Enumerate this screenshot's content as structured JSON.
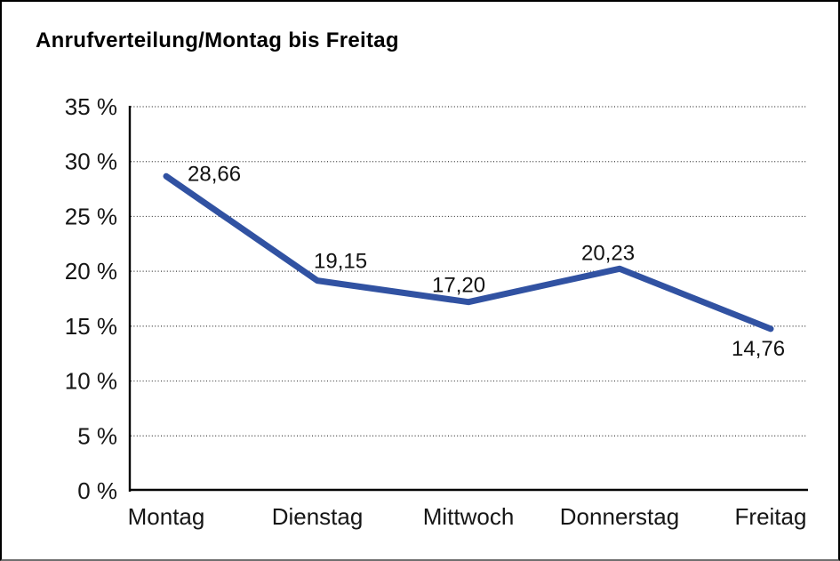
{
  "page": {
    "title": "Anrufverteilung/Montag bis Freitag"
  },
  "chart_data": {
    "type": "line",
    "title": "Anrufverteilung/Montag bis Freitag",
    "categories": [
      "Montag",
      "Dienstag",
      "Mittwoch",
      "Donnerstag",
      "Freitag"
    ],
    "series": [
      {
        "name": "Anrufverteilung",
        "values": [
          28.66,
          19.15,
          17.2,
          20.23,
          14.76
        ]
      }
    ],
    "value_labels": [
      "28,66",
      "19,15",
      "17,20",
      "20,23",
      "14,76"
    ],
    "y_ticks": [
      0,
      5,
      10,
      15,
      20,
      25,
      30,
      35
    ],
    "y_tick_labels": [
      "0 %",
      "5 %",
      "10 %",
      "15 %",
      "20 %",
      "25 %",
      "30 %",
      "35 %"
    ],
    "ylim": [
      0,
      35
    ],
    "xlabel": "",
    "ylabel": "",
    "grid": "dotted-horizontal",
    "legend": "none",
    "line_color": "#3152A2",
    "axis_color": "#000000",
    "grid_color": "#3c3c3c",
    "text_color": "#161616"
  }
}
